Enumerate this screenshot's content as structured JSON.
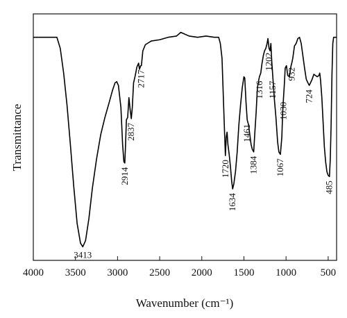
{
  "chart_data": {
    "type": "line",
    "xlabel": "Wavenumber (cm⁻¹)",
    "ylabel": "Transmittance",
    "xlim": [
      4000,
      400
    ],
    "x_reversed": true,
    "ylim": [
      0,
      1
    ],
    "y_ticks_shown": false,
    "grid": false,
    "x_ticks": [
      4000,
      3500,
      3000,
      2500,
      2000,
      1500,
      1000,
      500
    ],
    "x_tick_labels": [
      "4000",
      "3500",
      "3000",
      "2500",
      "2000",
      "1500",
      "1000",
      "500"
    ],
    "series": [
      {
        "color": "#000000",
        "points": [
          [
            4000,
            0.905
          ],
          [
            3800,
            0.905
          ],
          [
            3720,
            0.905
          ],
          [
            3680,
            0.86
          ],
          [
            3640,
            0.76
          ],
          [
            3600,
            0.63
          ],
          [
            3560,
            0.47
          ],
          [
            3520,
            0.3
          ],
          [
            3480,
            0.15
          ],
          [
            3440,
            0.07
          ],
          [
            3413,
            0.055
          ],
          [
            3380,
            0.08
          ],
          [
            3340,
            0.17
          ],
          [
            3300,
            0.29
          ],
          [
            3250,
            0.41
          ],
          [
            3200,
            0.51
          ],
          [
            3150,
            0.58
          ],
          [
            3100,
            0.64
          ],
          [
            3060,
            0.69
          ],
          [
            3030,
            0.72
          ],
          [
            3010,
            0.725
          ],
          [
            2990,
            0.71
          ],
          [
            2960,
            0.62
          ],
          [
            2940,
            0.47
          ],
          [
            2925,
            0.4
          ],
          [
            2914,
            0.395
          ],
          [
            2905,
            0.47
          ],
          [
            2895,
            0.57
          ],
          [
            2880,
            0.58
          ],
          [
            2865,
            0.66
          ],
          [
            2850,
            0.61
          ],
          [
            2837,
            0.575
          ],
          [
            2825,
            0.62
          ],
          [
            2810,
            0.72
          ],
          [
            2790,
            0.75
          ],
          [
            2770,
            0.785
          ],
          [
            2750,
            0.8
          ],
          [
            2740,
            0.775
          ],
          [
            2725,
            0.79
          ],
          [
            2717,
            0.79
          ],
          [
            2700,
            0.85
          ],
          [
            2670,
            0.875
          ],
          [
            2600,
            0.89
          ],
          [
            2500,
            0.895
          ],
          [
            2400,
            0.905
          ],
          [
            2300,
            0.91
          ],
          [
            2250,
            0.925
          ],
          [
            2150,
            0.91
          ],
          [
            2050,
            0.905
          ],
          [
            1950,
            0.91
          ],
          [
            1850,
            0.905
          ],
          [
            1800,
            0.905
          ],
          [
            1780,
            0.88
          ],
          [
            1760,
            0.82
          ],
          [
            1745,
            0.67
          ],
          [
            1730,
            0.52
          ],
          [
            1720,
            0.425
          ],
          [
            1710,
            0.5
          ],
          [
            1700,
            0.52
          ],
          [
            1690,
            0.47
          ],
          [
            1675,
            0.43
          ],
          [
            1660,
            0.38
          ],
          [
            1645,
            0.32
          ],
          [
            1634,
            0.29
          ],
          [
            1620,
            0.31
          ],
          [
            1600,
            0.36
          ],
          [
            1580,
            0.44
          ],
          [
            1560,
            0.55
          ],
          [
            1540,
            0.63
          ],
          [
            1520,
            0.7
          ],
          [
            1500,
            0.745
          ],
          [
            1490,
            0.74
          ],
          [
            1475,
            0.64
          ],
          [
            1461,
            0.57
          ],
          [
            1445,
            0.55
          ],
          [
            1430,
            0.51
          ],
          [
            1415,
            0.47
          ],
          [
            1400,
            0.45
          ],
          [
            1384,
            0.44
          ],
          [
            1370,
            0.52
          ],
          [
            1355,
            0.6
          ],
          [
            1340,
            0.7
          ],
          [
            1325,
            0.73
          ],
          [
            1316,
            0.745
          ],
          [
            1300,
            0.76
          ],
          [
            1285,
            0.8
          ],
          [
            1270,
            0.83
          ],
          [
            1255,
            0.85
          ],
          [
            1240,
            0.86
          ],
          [
            1225,
            0.88
          ],
          [
            1215,
            0.9
          ],
          [
            1202,
            0.86
          ],
          [
            1190,
            0.85
          ],
          [
            1180,
            0.88
          ],
          [
            1170,
            0.81
          ],
          [
            1157,
            0.745
          ],
          [
            1140,
            0.66
          ],
          [
            1120,
            0.58
          ],
          [
            1100,
            0.48
          ],
          [
            1085,
            0.44
          ],
          [
            1067,
            0.43
          ],
          [
            1050,
            0.5
          ],
          [
            1040,
            0.6
          ],
          [
            1030,
            0.66
          ],
          [
            1020,
            0.715
          ],
          [
            1010,
            0.78
          ],
          [
            995,
            0.79
          ],
          [
            980,
            0.75
          ],
          [
            960,
            0.745
          ],
          [
            940,
            0.79
          ],
          [
            932,
            0.8
          ],
          [
            920,
            0.82
          ],
          [
            900,
            0.87
          ],
          [
            880,
            0.88
          ],
          [
            860,
            0.9
          ],
          [
            840,
            0.905
          ],
          [
            820,
            0.88
          ],
          [
            800,
            0.83
          ],
          [
            780,
            0.78
          ],
          [
            760,
            0.735
          ],
          [
            740,
            0.72
          ],
          [
            724,
            0.71
          ],
          [
            710,
            0.72
          ],
          [
            690,
            0.735
          ],
          [
            670,
            0.755
          ],
          [
            650,
            0.75
          ],
          [
            630,
            0.745
          ],
          [
            610,
            0.75
          ],
          [
            600,
            0.76
          ],
          [
            590,
            0.73
          ],
          [
            575,
            0.66
          ],
          [
            560,
            0.56
          ],
          [
            545,
            0.46
          ],
          [
            530,
            0.4
          ],
          [
            515,
            0.36
          ],
          [
            500,
            0.345
          ],
          [
            485,
            0.34
          ],
          [
            475,
            0.41
          ],
          [
            465,
            0.55
          ],
          [
            455,
            0.75
          ],
          [
            445,
            0.88
          ],
          [
            435,
            0.905
          ],
          [
            400,
            0.905
          ]
        ]
      }
    ],
    "annotations": [
      {
        "text": "3413",
        "x": 3413,
        "y": 0.055,
        "orientation": "horizontal"
      },
      {
        "text": "2914",
        "x": 2914,
        "y": 0.395,
        "orientation": "vertical"
      },
      {
        "text": "2837",
        "x": 2837,
        "y": 0.575,
        "orientation": "vertical"
      },
      {
        "text": "2717",
        "x": 2717,
        "y": 0.79,
        "orientation": "vertical"
      },
      {
        "text": "1720",
        "x": 1720,
        "y": 0.425,
        "orientation": "vertical"
      },
      {
        "text": "1634",
        "x": 1634,
        "y": 0.29,
        "orientation": "vertical"
      },
      {
        "text": "1461",
        "x": 1461,
        "y": 0.57,
        "orientation": "vertical"
      },
      {
        "text": "1384",
        "x": 1384,
        "y": 0.44,
        "orientation": "vertical"
      },
      {
        "text": "1316",
        "x": 1316,
        "y": 0.745,
        "orientation": "vertical"
      },
      {
        "text": "1202",
        "x": 1202,
        "y": 0.86,
        "orientation": "vertical"
      },
      {
        "text": "1157",
        "x": 1157,
        "y": 0.745,
        "orientation": "vertical"
      },
      {
        "text": "1067",
        "x": 1067,
        "y": 0.43,
        "orientation": "vertical"
      },
      {
        "text": "1030",
        "x": 1030,
        "y": 0.66,
        "orientation": "vertical"
      },
      {
        "text": "932",
        "x": 932,
        "y": 0.8,
        "orientation": "vertical"
      },
      {
        "text": "724",
        "x": 724,
        "y": 0.71,
        "orientation": "vertical"
      },
      {
        "text": "485",
        "x": 485,
        "y": 0.34,
        "orientation": "vertical"
      }
    ]
  }
}
